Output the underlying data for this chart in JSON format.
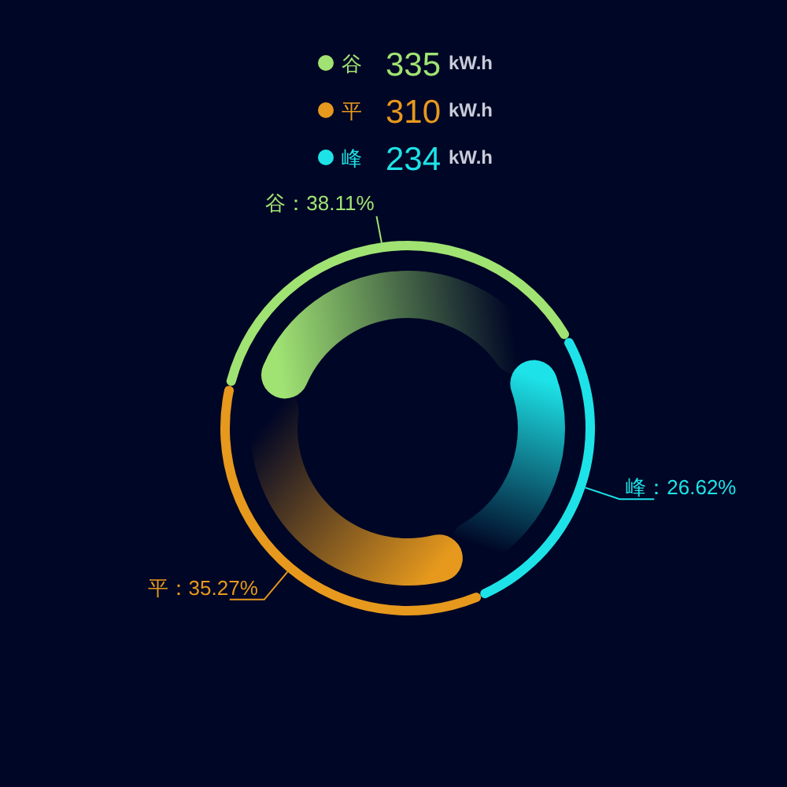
{
  "chart_data": {
    "type": "donut",
    "categories": [
      "谷",
      "平",
      "峰"
    ],
    "values": [
      38.11,
      35.27,
      26.62
    ],
    "colors": [
      "#a0e373",
      "#e6991d",
      "#1de3e8"
    ],
    "value_labels": [
      "谷：38.11%",
      "平：35.27%",
      "峰：26.62%"
    ],
    "annotations": [
      "335",
      "kW.h",
      "310",
      "kW.h",
      "234",
      "kW.h"
    ],
    "legend": "top"
  }
}
